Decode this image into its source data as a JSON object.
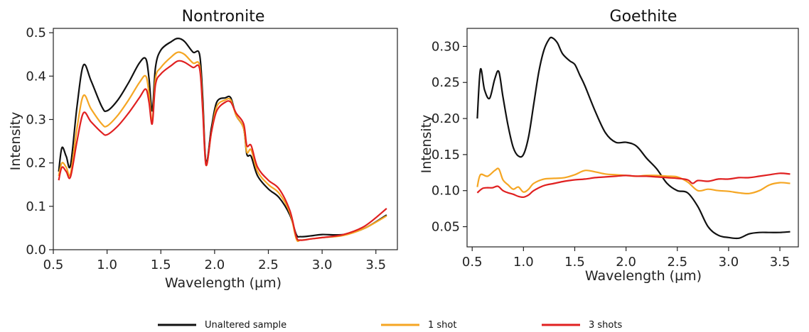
{
  "chart_data": [
    {
      "type": "line",
      "title": "Nontronite",
      "xlabel": "Wavelength (µm)",
      "ylabel": "Intensity",
      "xlim": [
        0.5,
        3.7
      ],
      "ylim": [
        0.0,
        0.51
      ],
      "xticks": [
        "0.5",
        "1.0",
        "1.5",
        "2.0",
        "2.5",
        "3.0",
        "3.5"
      ],
      "yticks": [
        "0.0",
        "0.1",
        "0.2",
        "0.3",
        "0.4",
        "0.5"
      ],
      "grid": false,
      "series": [
        {
          "name": "Unaltered sample",
          "color": "#111111",
          "x": [
            0.55,
            0.58,
            0.62,
            0.66,
            0.72,
            0.78,
            0.85,
            0.95,
            1.0,
            1.1,
            1.2,
            1.3,
            1.36,
            1.39,
            1.42,
            1.45,
            1.5,
            1.6,
            1.66,
            1.72,
            1.8,
            1.86,
            1.89,
            1.92,
            1.97,
            2.02,
            2.1,
            2.15,
            2.2,
            2.27,
            2.3,
            2.34,
            2.4,
            2.5,
            2.6,
            2.7,
            2.76,
            2.8,
            2.9,
            3.0,
            3.2,
            3.4,
            3.6
          ],
          "y": [
            0.18,
            0.235,
            0.215,
            0.195,
            0.33,
            0.425,
            0.39,
            0.33,
            0.32,
            0.345,
            0.385,
            0.43,
            0.44,
            0.395,
            0.32,
            0.42,
            0.46,
            0.48,
            0.487,
            0.48,
            0.455,
            0.45,
            0.35,
            0.2,
            0.28,
            0.34,
            0.35,
            0.35,
            0.31,
            0.28,
            0.22,
            0.215,
            0.17,
            0.14,
            0.12,
            0.08,
            0.035,
            0.03,
            0.032,
            0.035,
            0.035,
            0.05,
            0.08
          ]
        },
        {
          "name": "1 shot",
          "color": "#f5a623",
          "x": [
            0.55,
            0.58,
            0.62,
            0.66,
            0.72,
            0.78,
            0.85,
            0.95,
            1.0,
            1.1,
            1.2,
            1.3,
            1.36,
            1.39,
            1.42,
            1.45,
            1.5,
            1.6,
            1.66,
            1.72,
            1.8,
            1.86,
            1.89,
            1.92,
            1.97,
            2.02,
            2.1,
            2.15,
            2.2,
            2.27,
            2.3,
            2.34,
            2.4,
            2.5,
            2.6,
            2.7,
            2.76,
            2.8,
            2.9,
            3.0,
            3.2,
            3.4,
            3.6
          ],
          "y": [
            0.17,
            0.2,
            0.19,
            0.175,
            0.28,
            0.355,
            0.325,
            0.29,
            0.285,
            0.31,
            0.345,
            0.385,
            0.4,
            0.36,
            0.295,
            0.395,
            0.42,
            0.445,
            0.455,
            0.45,
            0.43,
            0.425,
            0.33,
            0.195,
            0.27,
            0.33,
            0.345,
            0.345,
            0.31,
            0.28,
            0.225,
            0.23,
            0.18,
            0.15,
            0.13,
            0.085,
            0.025,
            0.022,
            0.025,
            0.028,
            0.033,
            0.05,
            0.078
          ]
        },
        {
          "name": "3 shots",
          "color": "#e02020",
          "x": [
            0.55,
            0.58,
            0.62,
            0.66,
            0.72,
            0.78,
            0.85,
            0.95,
            1.0,
            1.1,
            1.2,
            1.3,
            1.36,
            1.39,
            1.42,
            1.45,
            1.5,
            1.6,
            1.66,
            1.72,
            1.8,
            1.86,
            1.89,
            1.92,
            1.97,
            2.02,
            2.1,
            2.15,
            2.2,
            2.27,
            2.3,
            2.34,
            2.4,
            2.5,
            2.6,
            2.7,
            2.76,
            2.8,
            2.9,
            3.0,
            3.2,
            3.4,
            3.6
          ],
          "y": [
            0.16,
            0.19,
            0.18,
            0.168,
            0.25,
            0.315,
            0.295,
            0.27,
            0.265,
            0.285,
            0.315,
            0.35,
            0.37,
            0.34,
            0.29,
            0.38,
            0.405,
            0.425,
            0.435,
            0.432,
            0.42,
            0.418,
            0.32,
            0.195,
            0.27,
            0.32,
            0.34,
            0.34,
            0.315,
            0.29,
            0.24,
            0.24,
            0.19,
            0.16,
            0.14,
            0.09,
            0.03,
            0.022,
            0.025,
            0.028,
            0.035,
            0.055,
            0.095
          ]
        }
      ]
    },
    {
      "type": "line",
      "title": "Goethite",
      "xlabel": "Wavelength (µm)",
      "ylabel": "Intensity",
      "xlim": [
        0.45,
        3.68
      ],
      "ylim": [
        0.022,
        0.325
      ],
      "xticks": [
        "0.5",
        "1.0",
        "1.5",
        "2.0",
        "2.5",
        "3.0",
        "3.5"
      ],
      "yticks": [
        "0.05",
        "0.10",
        "0.15",
        "0.20",
        "0.25",
        "0.30"
      ],
      "grid": false,
      "series": [
        {
          "name": "Unaltered sample",
          "color": "#111111",
          "x": [
            0.55,
            0.58,
            0.62,
            0.67,
            0.72,
            0.76,
            0.8,
            0.85,
            0.9,
            0.95,
            1.0,
            1.05,
            1.1,
            1.15,
            1.2,
            1.25,
            1.28,
            1.33,
            1.38,
            1.45,
            1.5,
            1.55,
            1.6,
            1.7,
            1.8,
            1.9,
            2.0,
            2.1,
            2.2,
            2.3,
            2.4,
            2.5,
            2.6,
            2.7,
            2.8,
            2.9,
            3.0,
            3.1,
            3.2,
            3.3,
            3.4,
            3.5,
            3.6
          ],
          "y": [
            0.2,
            0.268,
            0.24,
            0.228,
            0.255,
            0.265,
            0.23,
            0.19,
            0.16,
            0.148,
            0.15,
            0.175,
            0.22,
            0.265,
            0.295,
            0.31,
            0.312,
            0.305,
            0.29,
            0.28,
            0.275,
            0.26,
            0.245,
            0.21,
            0.18,
            0.167,
            0.167,
            0.162,
            0.145,
            0.13,
            0.11,
            0.1,
            0.097,
            0.078,
            0.05,
            0.038,
            0.035,
            0.034,
            0.04,
            0.042,
            0.042,
            0.042,
            0.043
          ]
        },
        {
          "name": "1 shot",
          "color": "#f5a623",
          "x": [
            0.55,
            0.58,
            0.65,
            0.72,
            0.76,
            0.8,
            0.85,
            0.9,
            0.95,
            1.0,
            1.05,
            1.1,
            1.2,
            1.3,
            1.4,
            1.5,
            1.6,
            1.7,
            1.8,
            1.9,
            2.0,
            2.1,
            2.2,
            2.3,
            2.4,
            2.5,
            2.6,
            2.7,
            2.8,
            2.9,
            3.0,
            3.1,
            3.2,
            3.3,
            3.4,
            3.5,
            3.6
          ],
          "y": [
            0.105,
            0.122,
            0.12,
            0.128,
            0.13,
            0.115,
            0.108,
            0.102,
            0.105,
            0.098,
            0.102,
            0.11,
            0.116,
            0.117,
            0.118,
            0.122,
            0.128,
            0.126,
            0.123,
            0.122,
            0.121,
            0.12,
            0.121,
            0.121,
            0.12,
            0.119,
            0.112,
            0.1,
            0.102,
            0.1,
            0.099,
            0.097,
            0.096,
            0.1,
            0.108,
            0.111,
            0.11
          ]
        },
        {
          "name": "3 shots",
          "color": "#e02020",
          "x": [
            0.55,
            0.6,
            0.65,
            0.7,
            0.75,
            0.8,
            0.85,
            0.9,
            0.95,
            1.0,
            1.05,
            1.1,
            1.2,
            1.3,
            1.4,
            1.5,
            1.6,
            1.7,
            1.8,
            1.9,
            2.0,
            2.1,
            2.2,
            2.3,
            2.4,
            2.5,
            2.6,
            2.65,
            2.7,
            2.8,
            2.9,
            3.0,
            3.1,
            3.2,
            3.3,
            3.4,
            3.5,
            3.6
          ],
          "y": [
            0.097,
            0.103,
            0.104,
            0.104,
            0.106,
            0.1,
            0.097,
            0.095,
            0.092,
            0.091,
            0.094,
            0.1,
            0.107,
            0.11,
            0.113,
            0.115,
            0.116,
            0.118,
            0.119,
            0.12,
            0.121,
            0.12,
            0.12,
            0.119,
            0.118,
            0.117,
            0.115,
            0.11,
            0.114,
            0.113,
            0.116,
            0.116,
            0.118,
            0.118,
            0.12,
            0.122,
            0.124,
            0.123
          ]
        }
      ]
    }
  ],
  "legend": {
    "placement": "bottom",
    "items": [
      {
        "label": "Unaltered sample",
        "color": "#111111"
      },
      {
        "label": "1 shot",
        "color": "#f5a623"
      },
      {
        "label": "3 shots",
        "color": "#e02020"
      }
    ]
  }
}
